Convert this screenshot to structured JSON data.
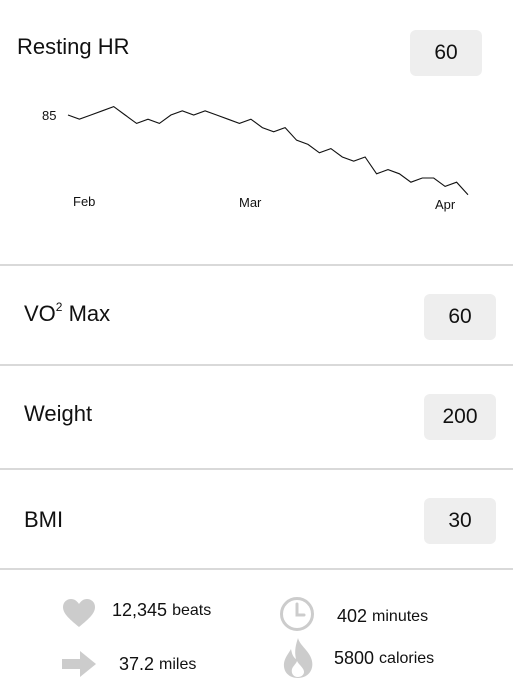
{
  "resting_hr": {
    "title": "Resting HR",
    "value": "60",
    "chart": {
      "y_tick_label": "85",
      "x_tick_labels": [
        "Feb",
        "Mar",
        "Apr"
      ]
    }
  },
  "metrics": [
    {
      "label_prefix": "VO",
      "label_sup": "2",
      "label_suffix": "Max",
      "value": "60"
    },
    {
      "label": "Weight",
      "value": "200"
    },
    {
      "label": "BMI",
      "value": "30"
    }
  ],
  "stats": {
    "beats": {
      "value": "12,345",
      "unit": "beats",
      "icon": "heart-icon"
    },
    "minutes": {
      "value": "402",
      "unit": "minutes",
      "icon": "clock-icon"
    },
    "miles": {
      "value": "37.2",
      "unit": "miles",
      "icon": "arrow-right-icon"
    },
    "calories": {
      "value": "5800",
      "unit": "calories",
      "icon": "flame-icon"
    }
  },
  "colors": {
    "badge_bg": "#eeeeee",
    "divider": "#d9d9d9",
    "icon": "#cccccc",
    "line": "#111111"
  },
  "chart_data": {
    "type": "line",
    "title": "Resting HR",
    "x_tick_labels": [
      "Feb",
      "Mar",
      "Apr"
    ],
    "y_tick_labels": [
      "85"
    ],
    "series": [
      {
        "values": [
          85,
          84,
          85,
          86,
          87,
          85,
          83,
          84,
          83,
          85,
          86,
          85,
          86,
          85,
          84,
          83,
          84,
          82,
          81,
          82,
          79,
          78,
          76,
          77,
          75,
          74,
          75,
          71,
          72,
          71,
          69,
          70,
          70,
          68,
          69,
          66
        ]
      }
    ]
  }
}
